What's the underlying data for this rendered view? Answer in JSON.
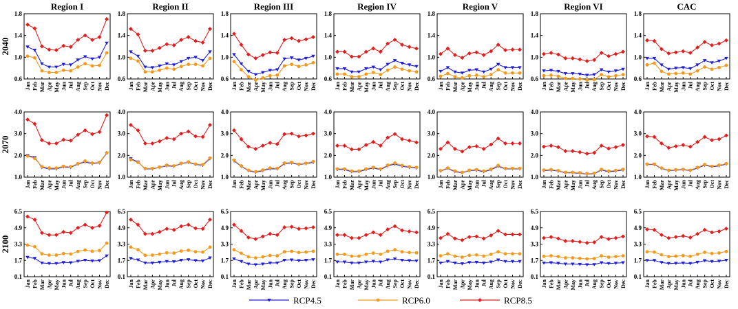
{
  "chart_data": {
    "type": "line",
    "regions": [
      "Region I",
      "Region II",
      "Region III",
      "Region IV",
      "Region V",
      "Region VI",
      "CAC"
    ],
    "years": [
      "2040",
      "2070",
      "2100"
    ],
    "months": [
      "Jan",
      "Feb",
      "Mar",
      "Apr",
      "May",
      "Jun",
      "Jul",
      "Aug",
      "Sep",
      "Oct",
      "Nov",
      "Dec"
    ],
    "y_axes": {
      "2040": {
        "min": 0.6,
        "max": 1.8,
        "ticks": [
          "0.6",
          "1.0",
          "1.4",
          "1.8"
        ]
      },
      "2070": {
        "min": 1.0,
        "max": 4.0,
        "ticks": [
          "1.0",
          "2.0",
          "3.0",
          "4.0"
        ]
      },
      "2100": {
        "min": 0.1,
        "max": 6.5,
        "ticks": [
          "0.1",
          "1.7",
          "3.3",
          "4.9",
          "6.5"
        ]
      }
    },
    "legend": [
      {
        "name": "RCP4.5",
        "color": "#1f1fd6",
        "marker": "triangle-down"
      },
      {
        "name": "RCP6.0",
        "color": "#f39a1e",
        "marker": "circle"
      },
      {
        "name": "RCP8.5",
        "color": "#e0201f",
        "marker": "diamond"
      }
    ],
    "panels": {
      "Region I": {
        "2040": {
          "RCP4.5": [
            1.19,
            1.13,
            0.88,
            0.82,
            0.82,
            0.87,
            0.86,
            0.95,
            1.01,
            0.97,
            1.0,
            1.26
          ],
          "RCP6.0": [
            1.02,
            0.99,
            0.75,
            0.72,
            0.72,
            0.76,
            0.75,
            0.82,
            0.88,
            0.84,
            0.85,
            1.08
          ],
          "RCP8.5": [
            1.6,
            1.53,
            1.2,
            1.14,
            1.13,
            1.21,
            1.19,
            1.32,
            1.4,
            1.32,
            1.37,
            1.7
          ]
        },
        "2070": {
          "RCP4.5": [
            2.0,
            1.9,
            1.45,
            1.38,
            1.38,
            1.47,
            1.45,
            1.6,
            1.7,
            1.62,
            1.66,
            2.1
          ],
          "RCP6.0": [
            1.97,
            1.86,
            1.48,
            1.42,
            1.42,
            1.5,
            1.48,
            1.62,
            1.74,
            1.65,
            1.68,
            2.12
          ],
          "RCP8.5": [
            3.65,
            3.45,
            2.7,
            2.55,
            2.55,
            2.72,
            2.68,
            2.95,
            3.15,
            2.98,
            3.08,
            3.85
          ]
        },
        "2100": {
          "RCP4.5": [
            2.0,
            1.9,
            1.45,
            1.4,
            1.4,
            1.5,
            1.48,
            1.62,
            1.72,
            1.65,
            1.68,
            2.15
          ],
          "RCP6.0": [
            3.2,
            3.05,
            2.35,
            2.22,
            2.22,
            2.37,
            2.33,
            2.58,
            2.72,
            2.6,
            2.66,
            3.4
          ],
          "RCP8.5": [
            6.0,
            5.7,
            4.4,
            4.2,
            4.2,
            4.5,
            4.4,
            4.9,
            5.2,
            4.9,
            5.1,
            6.4
          ]
        }
      },
      "Region II": {
        "2040": {
          "RCP4.5": [
            1.1,
            1.02,
            0.82,
            0.81,
            0.84,
            0.88,
            0.86,
            0.92,
            0.98,
            1.0,
            0.94,
            1.1
          ],
          "RCP6.0": [
            0.98,
            0.93,
            0.73,
            0.73,
            0.76,
            0.8,
            0.78,
            0.83,
            0.87,
            0.87,
            0.84,
            0.98
          ],
          "RCP8.5": [
            1.52,
            1.42,
            1.12,
            1.12,
            1.17,
            1.24,
            1.22,
            1.32,
            1.37,
            1.3,
            1.27,
            1.52
          ]
        },
        "2070": {
          "RCP4.5": [
            1.85,
            1.7,
            1.38,
            1.38,
            1.45,
            1.52,
            1.5,
            1.62,
            1.68,
            1.58,
            1.55,
            1.85
          ],
          "RCP6.0": [
            1.8,
            1.68,
            1.4,
            1.4,
            1.46,
            1.55,
            1.52,
            1.64,
            1.7,
            1.6,
            1.58,
            1.88
          ],
          "RCP8.5": [
            3.4,
            3.15,
            2.55,
            2.55,
            2.65,
            2.8,
            2.75,
            3.0,
            3.1,
            2.88,
            2.85,
            3.4
          ]
        },
        "2100": {
          "RCP4.5": [
            1.9,
            1.75,
            1.45,
            1.45,
            1.52,
            1.6,
            1.58,
            1.72,
            1.78,
            1.68,
            1.65,
            1.95
          ],
          "RCP6.0": [
            3.0,
            2.75,
            2.2,
            2.22,
            2.32,
            2.45,
            2.42,
            2.62,
            2.7,
            2.55,
            2.52,
            3.0
          ],
          "RCP8.5": [
            5.7,
            5.2,
            4.3,
            4.3,
            4.5,
            4.8,
            4.7,
            5.05,
            5.2,
            4.85,
            4.8,
            5.7
          ]
        }
      },
      "Region III": {
        "2040": {
          "RCP4.5": [
            1.05,
            0.88,
            0.74,
            0.68,
            0.72,
            0.76,
            0.77,
            0.97,
            0.99,
            0.95,
            0.98,
            1.02
          ],
          "RCP6.0": [
            0.92,
            0.77,
            0.64,
            0.58,
            0.62,
            0.66,
            0.67,
            0.84,
            0.87,
            0.83,
            0.86,
            0.9
          ],
          "RCP8.5": [
            1.43,
            1.23,
            1.05,
            0.98,
            1.04,
            1.09,
            1.08,
            1.32,
            1.35,
            1.3,
            1.33,
            1.37
          ]
        },
        "2070": {
          "RCP4.5": [
            1.75,
            1.5,
            1.3,
            1.22,
            1.3,
            1.38,
            1.38,
            1.62,
            1.65,
            1.58,
            1.62,
            1.68
          ],
          "RCP6.0": [
            1.78,
            1.52,
            1.32,
            1.25,
            1.33,
            1.42,
            1.4,
            1.65,
            1.68,
            1.6,
            1.64,
            1.72
          ],
          "RCP8.5": [
            3.15,
            2.75,
            2.4,
            2.3,
            2.45,
            2.58,
            2.52,
            2.98,
            3.0,
            2.88,
            2.92,
            3.0
          ]
        },
        "2100": {
          "RCP4.5": [
            1.85,
            1.6,
            1.35,
            1.28,
            1.35,
            1.45,
            1.45,
            1.72,
            1.75,
            1.68,
            1.72,
            1.78
          ],
          "RCP6.0": [
            2.75,
            2.4,
            2.05,
            1.95,
            2.05,
            2.18,
            2.15,
            2.55,
            2.6,
            2.48,
            2.52,
            2.6
          ],
          "RCP8.5": [
            5.2,
            4.6,
            3.95,
            3.8,
            4.05,
            4.3,
            4.2,
            4.95,
            5.0,
            4.8,
            4.85,
            4.95
          ]
        }
      },
      "Region IV": {
        "2040": {
          "RCP4.5": [
            0.79,
            0.79,
            0.73,
            0.73,
            0.79,
            0.82,
            0.77,
            0.87,
            0.94,
            0.89,
            0.86,
            0.83
          ],
          "RCP6.0": [
            0.69,
            0.69,
            0.64,
            0.64,
            0.69,
            0.72,
            0.68,
            0.76,
            0.82,
            0.78,
            0.75,
            0.73
          ],
          "RCP8.5": [
            1.1,
            1.1,
            1.01,
            1.01,
            1.1,
            1.16,
            1.1,
            1.25,
            1.32,
            1.23,
            1.19,
            1.16
          ]
        },
        "2070": {
          "RCP4.5": [
            1.35,
            1.35,
            1.25,
            1.25,
            1.35,
            1.42,
            1.35,
            1.52,
            1.6,
            1.5,
            1.45,
            1.42
          ],
          "RCP6.0": [
            1.38,
            1.38,
            1.28,
            1.28,
            1.38,
            1.45,
            1.38,
            1.55,
            1.65,
            1.54,
            1.48,
            1.45
          ],
          "RCP8.5": [
            2.45,
            2.45,
            2.28,
            2.28,
            2.48,
            2.62,
            2.45,
            2.82,
            2.98,
            2.75,
            2.68,
            2.6
          ]
        },
        "2100": {
          "RCP4.5": [
            1.55,
            1.55,
            1.45,
            1.45,
            1.55,
            1.62,
            1.55,
            1.75,
            1.85,
            1.72,
            1.68,
            1.65
          ],
          "RCP6.0": [
            2.3,
            2.3,
            2.12,
            2.12,
            2.3,
            2.42,
            2.3,
            2.6,
            2.75,
            2.55,
            2.48,
            2.45
          ],
          "RCP8.5": [
            4.2,
            4.2,
            3.9,
            3.9,
            4.2,
            4.45,
            4.2,
            4.75,
            5.05,
            4.65,
            4.55,
            4.45
          ]
        }
      },
      "Region V": {
        "2040": {
          "RCP4.5": [
            0.74,
            0.81,
            0.73,
            0.71,
            0.76,
            0.77,
            0.73,
            0.78,
            0.87,
            0.81,
            0.81,
            0.81
          ],
          "RCP6.0": [
            0.65,
            0.7,
            0.64,
            0.62,
            0.66,
            0.67,
            0.64,
            0.68,
            0.77,
            0.71,
            0.71,
            0.71
          ],
          "RCP8.5": [
            1.06,
            1.16,
            1.04,
            0.99,
            1.07,
            1.09,
            1.04,
            1.11,
            1.23,
            1.13,
            1.14,
            1.14
          ]
        },
        "2070": {
          "RCP4.5": [
            1.28,
            1.4,
            1.25,
            1.2,
            1.3,
            1.32,
            1.25,
            1.34,
            1.5,
            1.38,
            1.38,
            1.38
          ],
          "RCP6.0": [
            1.3,
            1.42,
            1.28,
            1.22,
            1.32,
            1.35,
            1.28,
            1.37,
            1.54,
            1.4,
            1.4,
            1.4
          ],
          "RCP8.5": [
            2.3,
            2.6,
            2.3,
            2.18,
            2.38,
            2.42,
            2.3,
            2.5,
            2.78,
            2.55,
            2.55,
            2.55
          ]
        },
        "2100": {
          "RCP4.5": [
            1.45,
            1.6,
            1.45,
            1.38,
            1.5,
            1.52,
            1.45,
            1.55,
            1.75,
            1.6,
            1.6,
            1.6
          ],
          "RCP6.0": [
            2.15,
            2.35,
            2.12,
            2.02,
            2.2,
            2.24,
            2.12,
            2.3,
            2.55,
            2.35,
            2.35,
            2.35
          ],
          "RCP8.5": [
            3.9,
            4.3,
            3.85,
            3.7,
            4.0,
            4.05,
            3.85,
            4.15,
            4.6,
            4.25,
            4.25,
            4.25
          ]
        }
      },
      "Region VI": {
        "2040": {
          "RCP4.5": [
            0.75,
            0.76,
            0.74,
            0.7,
            0.7,
            0.69,
            0.67,
            0.68,
            0.77,
            0.73,
            0.75,
            0.78
          ],
          "RCP6.0": [
            0.66,
            0.67,
            0.65,
            0.61,
            0.61,
            0.6,
            0.58,
            0.59,
            0.68,
            0.64,
            0.66,
            0.68
          ],
          "RCP8.5": [
            1.06,
            1.08,
            1.05,
            0.98,
            0.98,
            0.96,
            0.93,
            0.95,
            1.08,
            1.02,
            1.06,
            1.1
          ]
        },
        "2070": {
          "RCP4.5": [
            1.3,
            1.32,
            1.28,
            1.2,
            1.2,
            1.18,
            1.14,
            1.16,
            1.33,
            1.25,
            1.28,
            1.33
          ],
          "RCP6.0": [
            1.33,
            1.35,
            1.3,
            1.22,
            1.22,
            1.2,
            1.16,
            1.18,
            1.36,
            1.28,
            1.31,
            1.36
          ],
          "RCP8.5": [
            2.4,
            2.45,
            2.38,
            2.2,
            2.2,
            2.15,
            2.08,
            2.12,
            2.45,
            2.32,
            2.38,
            2.48
          ]
        },
        "2100": {
          "RCP4.5": [
            1.45,
            1.48,
            1.42,
            1.35,
            1.35,
            1.32,
            1.28,
            1.3,
            1.48,
            1.4,
            1.43,
            1.48
          ],
          "RCP6.0": [
            2.1,
            2.15,
            2.08,
            1.95,
            1.95,
            1.9,
            1.85,
            1.88,
            2.15,
            2.02,
            2.08,
            2.15
          ],
          "RCP8.5": [
            3.9,
            4.0,
            3.85,
            3.6,
            3.6,
            3.52,
            3.42,
            3.48,
            4.0,
            3.8,
            3.9,
            4.05
          ]
        }
      },
      "CAC": {
        "2040": {
          "RCP4.5": [
            0.98,
            0.98,
            0.86,
            0.78,
            0.8,
            0.81,
            0.79,
            0.86,
            0.94,
            0.9,
            0.93,
            0.98
          ],
          "RCP6.0": [
            0.86,
            0.89,
            0.74,
            0.69,
            0.7,
            0.71,
            0.69,
            0.75,
            0.82,
            0.78,
            0.81,
            0.85
          ],
          "RCP8.5": [
            1.31,
            1.3,
            1.15,
            1.07,
            1.09,
            1.11,
            1.08,
            1.18,
            1.28,
            1.22,
            1.25,
            1.31
          ]
        },
        "2070": {
          "RCP4.5": [
            1.58,
            1.58,
            1.4,
            1.3,
            1.32,
            1.34,
            1.3,
            1.42,
            1.55,
            1.48,
            1.52,
            1.6
          ],
          "RCP6.0": [
            1.6,
            1.6,
            1.42,
            1.32,
            1.34,
            1.36,
            1.32,
            1.45,
            1.58,
            1.5,
            1.55,
            1.62
          ],
          "RCP8.5": [
            2.88,
            2.85,
            2.55,
            2.35,
            2.42,
            2.48,
            2.4,
            2.62,
            2.85,
            2.7,
            2.75,
            2.92
          ]
        },
        "2100": {
          "RCP4.5": [
            1.7,
            1.7,
            1.5,
            1.4,
            1.42,
            1.45,
            1.4,
            1.52,
            1.68,
            1.6,
            1.63,
            1.72
          ],
          "RCP6.0": [
            2.55,
            2.52,
            2.25,
            2.08,
            2.12,
            2.17,
            2.1,
            2.3,
            2.5,
            2.38,
            2.43,
            2.57
          ],
          "RCP8.5": [
            4.75,
            4.7,
            4.2,
            3.9,
            4.0,
            4.1,
            3.95,
            4.3,
            4.7,
            4.45,
            4.55,
            4.82
          ]
        }
      }
    }
  }
}
